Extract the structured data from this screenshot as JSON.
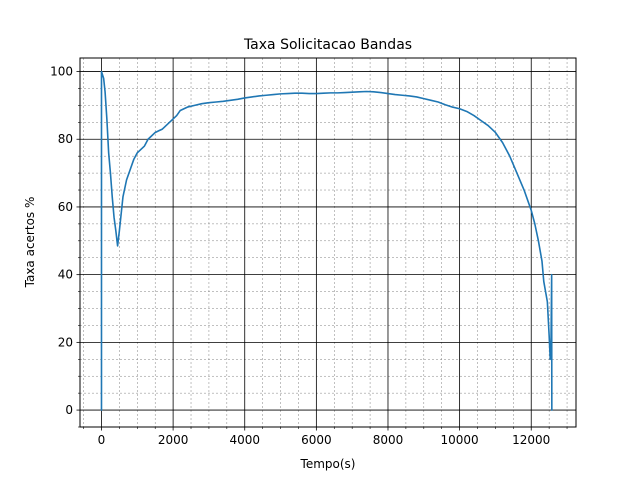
{
  "chart_data": {
    "type": "line",
    "title": "Taxa Solicitacao Bandas",
    "xlabel": "Tempo(s)",
    "ylabel": "Taxa acertos %",
    "xlim": [
      -600,
      13250
    ],
    "ylim": [
      -5,
      104
    ],
    "xticks": [
      0,
      2000,
      4000,
      6000,
      8000,
      10000,
      12000
    ],
    "yticks": [
      0,
      20,
      40,
      60,
      80,
      100
    ],
    "x_minor_step": 500,
    "y_minor_step": 5,
    "grid": "major and minor",
    "legend": "none",
    "colors": {
      "line": "#1f77b4",
      "major_grid": "#000000",
      "minor_grid": "#808080"
    },
    "series": [
      {
        "points": [
          [
            0,
            0
          ],
          [
            0,
            100
          ],
          [
            30,
            99
          ],
          [
            60,
            98
          ],
          [
            100,
            94
          ],
          [
            150,
            86
          ],
          [
            200,
            76
          ],
          [
            250,
            70
          ],
          [
            300,
            63
          ],
          [
            350,
            57
          ],
          [
            400,
            53
          ],
          [
            450,
            48.5
          ],
          [
            500,
            53
          ],
          [
            550,
            58
          ],
          [
            600,
            63
          ],
          [
            700,
            68
          ],
          [
            800,
            71
          ],
          [
            900,
            74
          ],
          [
            1000,
            76
          ],
          [
            1100,
            77
          ],
          [
            1200,
            78
          ],
          [
            1300,
            80
          ],
          [
            1400,
            81
          ],
          [
            1500,
            82
          ],
          [
            1600,
            82.5
          ],
          [
            1700,
            83
          ],
          [
            1800,
            84
          ],
          [
            1900,
            85
          ],
          [
            2000,
            86
          ],
          [
            2100,
            87
          ],
          [
            2200,
            88.5
          ],
          [
            2400,
            89.5
          ],
          [
            2600,
            90
          ],
          [
            2800,
            90.5
          ],
          [
            3000,
            90.8
          ],
          [
            3200,
            91
          ],
          [
            3400,
            91.2
          ],
          [
            3600,
            91.5
          ],
          [
            3800,
            91.8
          ],
          [
            4000,
            92.2
          ],
          [
            4200,
            92.5
          ],
          [
            4400,
            92.8
          ],
          [
            4600,
            93
          ],
          [
            4800,
            93.2
          ],
          [
            5000,
            93.4
          ],
          [
            5200,
            93.5
          ],
          [
            5400,
            93.6
          ],
          [
            5600,
            93.6
          ],
          [
            5800,
            93.5
          ],
          [
            6000,
            93.5
          ],
          [
            6200,
            93.6
          ],
          [
            6400,
            93.7
          ],
          [
            6600,
            93.7
          ],
          [
            6800,
            93.8
          ],
          [
            7000,
            93.9
          ],
          [
            7200,
            94
          ],
          [
            7400,
            94.1
          ],
          [
            7600,
            94
          ],
          [
            7800,
            93.8
          ],
          [
            8000,
            93.5
          ],
          [
            8200,
            93.2
          ],
          [
            8400,
            93
          ],
          [
            8600,
            92.8
          ],
          [
            8800,
            92.5
          ],
          [
            9000,
            92
          ],
          [
            9200,
            91.5
          ],
          [
            9400,
            91
          ],
          [
            9600,
            90.2
          ],
          [
            9800,
            89.5
          ],
          [
            10000,
            89
          ],
          [
            10200,
            88.2
          ],
          [
            10400,
            87
          ],
          [
            10600,
            85.5
          ],
          [
            10800,
            84
          ],
          [
            11000,
            82
          ],
          [
            11200,
            79
          ],
          [
            11400,
            75
          ],
          [
            11600,
            70
          ],
          [
            11800,
            65
          ],
          [
            11900,
            62
          ],
          [
            12000,
            59
          ],
          [
            12100,
            55
          ],
          [
            12200,
            50
          ],
          [
            12300,
            44
          ],
          [
            12350,
            38
          ],
          [
            12400,
            35
          ],
          [
            12450,
            32
          ],
          [
            12500,
            22
          ],
          [
            12530,
            15
          ],
          [
            12550,
            17
          ],
          [
            12570,
            40
          ],
          [
            12575,
            0
          ]
        ]
      }
    ]
  }
}
